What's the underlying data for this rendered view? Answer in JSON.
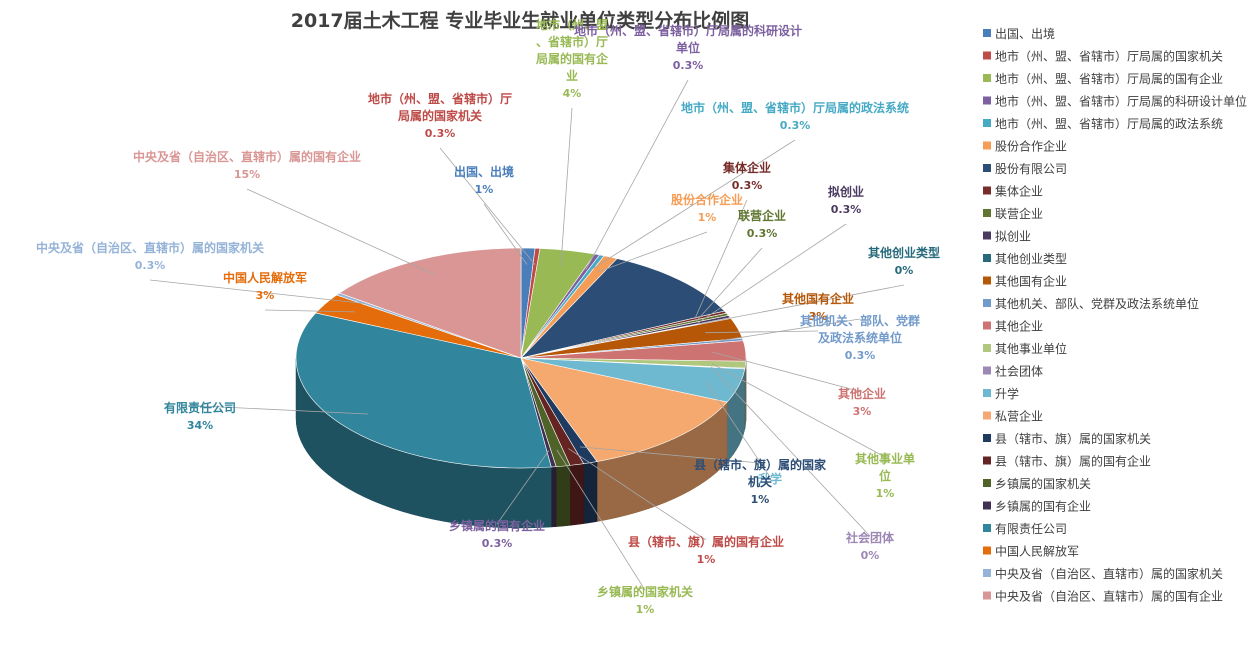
{
  "chart_data": {
    "type": "pie",
    "title": "2017届土木工程 专业毕业生就业单位类型分布比例图",
    "categories": [
      "出国、出境",
      "地市（州、盟、省辖市）厅局属的国家机关",
      "地市（州、盟、省辖市）厅局属的国有企业",
      "地市（州、盟、省辖市）厅局属的科研设计单位",
      "地市（州、盟、省辖市）厅局属的政法系统",
      "股份合作企业",
      "股份有限公司",
      "集体企业",
      "联营企业",
      "拟创业",
      "其他创业类型",
      "其他国有企业",
      "其他机关、部队、党群及政法系统单位",
      "其他企业",
      "其他事业单位",
      "社会团体",
      "升学",
      "私营企业",
      "县（辖市、旗）属的国家机关",
      "县（辖市、旗）属的国有企业",
      "乡镇属的国家机关",
      "乡镇属的国有企业",
      "有限责任公司",
      "中国人民解放军",
      "中央及省（自治区、直辖市）属的国家机关",
      "中央及省（自治区、直辖市）属的国有企业"
    ],
    "values": [
      1,
      0.3,
      4,
      0.3,
      0.3,
      1,
      11,
      0.3,
      0.3,
      0.3,
      0,
      3,
      0.3,
      3,
      1,
      0,
      5,
      13,
      1,
      1,
      1,
      0.3,
      34,
      3,
      0.3,
      15
    ],
    "data_labels": [
      "1%",
      "0.3%",
      "4%",
      "0.3%",
      "0.3%",
      "1%",
      "",
      "0.3%",
      "0.3%",
      "0.3%",
      "0%",
      "3%",
      "0.3%",
      "3%",
      "1%",
      "0%",
      "",
      "",
      "1%",
      "1%",
      "1%",
      "0.3%",
      "34%",
      "3%",
      "0.3%",
      "15%"
    ],
    "colors": [
      "#4a7ebb",
      "#be4b48",
      "#98b954",
      "#7d60a0",
      "#46aac4",
      "#f59d56",
      "#2c4d75",
      "#772c2a",
      "#5f7530",
      "#4b3a60",
      "#276a7c",
      "#b65708",
      "#729aca",
      "#cd7371",
      "#b0c77e",
      "#9d87b5",
      "#6eb9d0",
      "#f5a96e",
      "#1e3a5f",
      "#642422",
      "#4f6228",
      "#3f3151",
      "#31859c",
      "#e46c0a",
      "#95b3d7",
      "#d99694"
    ],
    "label_colors": [
      "#4a7ebb",
      "#be4b48",
      "#98b954",
      "#7d60a0",
      "#46aac4",
      "#f59d56",
      "#2c4d75",
      "#772c2a",
      "#5f7530",
      "#4b3a60",
      "#276a7c",
      "#b65708",
      "#729aca",
      "#cd7371",
      "#98b954",
      "#9d87b5",
      "#6eb9d0",
      "#f5a96e",
      "#2c4d75",
      "#be4b48",
      "#98b954",
      "#7d60a0",
      "#31859c",
      "#e46c0a",
      "#95b3d7",
      "#d99694"
    ],
    "legend_position": "right",
    "style": "3d-pie"
  }
}
